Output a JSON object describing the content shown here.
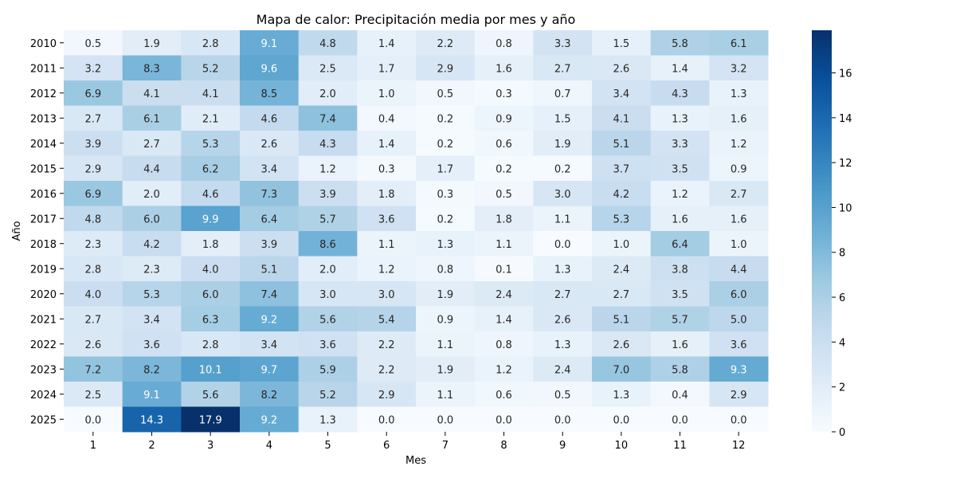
{
  "chart_data": {
    "type": "heatmap",
    "title": "Mapa de calor: Precipitación media por mes y año",
    "xlabel": "Mes",
    "ylabel": "Año",
    "x_categories": [
      "1",
      "2",
      "3",
      "4",
      "5",
      "6",
      "7",
      "8",
      "9",
      "10",
      "11",
      "12"
    ],
    "y_categories": [
      "2010",
      "2011",
      "2012",
      "2013",
      "2014",
      "2015",
      "2016",
      "2017",
      "2018",
      "2019",
      "2020",
      "2021",
      "2022",
      "2023",
      "2024",
      "2025"
    ],
    "values": [
      [
        0.5,
        1.9,
        2.8,
        9.1,
        4.8,
        1.4,
        2.2,
        0.8,
        3.3,
        1.5,
        5.8,
        6.1
      ],
      [
        3.2,
        8.3,
        5.2,
        9.6,
        2.5,
        1.7,
        2.9,
        1.6,
        2.7,
        2.6,
        1.4,
        3.2
      ],
      [
        6.9,
        4.1,
        4.1,
        8.5,
        2.0,
        1.0,
        0.5,
        0.3,
        0.7,
        3.4,
        4.3,
        1.3
      ],
      [
        2.7,
        6.1,
        2.1,
        4.6,
        7.4,
        0.4,
        0.2,
        0.9,
        1.5,
        4.1,
        1.3,
        1.6
      ],
      [
        3.9,
        2.7,
        5.3,
        2.6,
        4.3,
        1.4,
        0.2,
        0.6,
        1.9,
        5.1,
        3.3,
        1.2
      ],
      [
        2.9,
        4.4,
        6.2,
        3.4,
        1.2,
        0.3,
        1.7,
        0.2,
        0.2,
        3.7,
        3.5,
        0.9
      ],
      [
        6.9,
        2.0,
        4.6,
        7.3,
        3.9,
        1.8,
        0.3,
        0.5,
        3.0,
        4.2,
        1.2,
        2.7
      ],
      [
        4.8,
        6.0,
        9.9,
        6.4,
        5.7,
        3.6,
        0.2,
        1.8,
        1.1,
        5.3,
        1.6,
        1.6
      ],
      [
        2.3,
        4.2,
        1.8,
        3.9,
        8.6,
        1.1,
        1.3,
        1.1,
        0.0,
        1.0,
        6.4,
        1.0
      ],
      [
        2.8,
        2.3,
        4.0,
        5.1,
        2.0,
        1.2,
        0.8,
        0.1,
        1.3,
        2.4,
        3.8,
        4.4
      ],
      [
        4.0,
        5.3,
        6.0,
        7.4,
        3.0,
        3.0,
        1.9,
        2.4,
        2.7,
        2.7,
        3.5,
        6.0
      ],
      [
        2.7,
        3.4,
        6.3,
        9.2,
        5.6,
        5.4,
        0.9,
        1.4,
        2.6,
        5.1,
        5.7,
        5.0
      ],
      [
        2.6,
        3.6,
        2.8,
        3.4,
        3.6,
        2.2,
        1.1,
        0.8,
        1.3,
        2.6,
        1.6,
        3.6
      ],
      [
        7.2,
        8.2,
        10.1,
        9.7,
        5.9,
        2.2,
        1.9,
        1.2,
        2.4,
        7.0,
        5.8,
        9.3
      ],
      [
        2.5,
        9.1,
        5.6,
        8.2,
        5.2,
        2.9,
        1.1,
        0.6,
        0.5,
        1.3,
        0.4,
        2.9
      ],
      [
        0.0,
        14.3,
        17.9,
        9.2,
        1.3,
        0.0,
        0.0,
        0.0,
        0.0,
        0.0,
        0.0,
        0.0
      ]
    ],
    "colorscale": "Blues",
    "vmin": 0,
    "vmax": 17.9,
    "colorbar_ticks": [
      0,
      2,
      4,
      6,
      8,
      10,
      12,
      14,
      16
    ],
    "annotated": true,
    "grid": false
  }
}
